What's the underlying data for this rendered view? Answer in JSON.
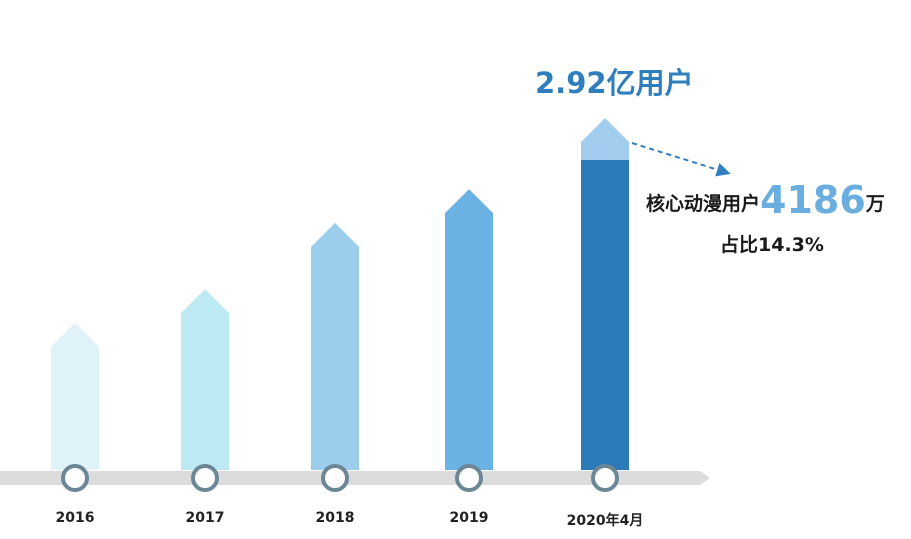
{
  "chart_data": {
    "type": "bar",
    "title": "",
    "xlabel": "",
    "ylabel": "",
    "categories": [
      "2016",
      "2017",
      "2018",
      "2019",
      "2020年4月"
    ],
    "values": [
      1.22,
      1.5,
      2.05,
      2.33,
      2.92
    ],
    "ylim": [
      0,
      2.92
    ],
    "grid": false,
    "colors": [
      "#dff2f8",
      "#bce9f2",
      "#9dcdec",
      "#6ab2e4",
      "#2d7ab9"
    ],
    "top_segment_color": "#a3cdee",
    "timeline_color": "#dcdcdc",
    "node_ring_color": "#6b8796",
    "annotations": {
      "total": {
        "prefix": "2.92",
        "unit": "亿用户"
      },
      "core": {
        "label": "核心动漫用户",
        "value": "4186",
        "unit": "万",
        "share_label": "占比14.3%"
      }
    }
  }
}
